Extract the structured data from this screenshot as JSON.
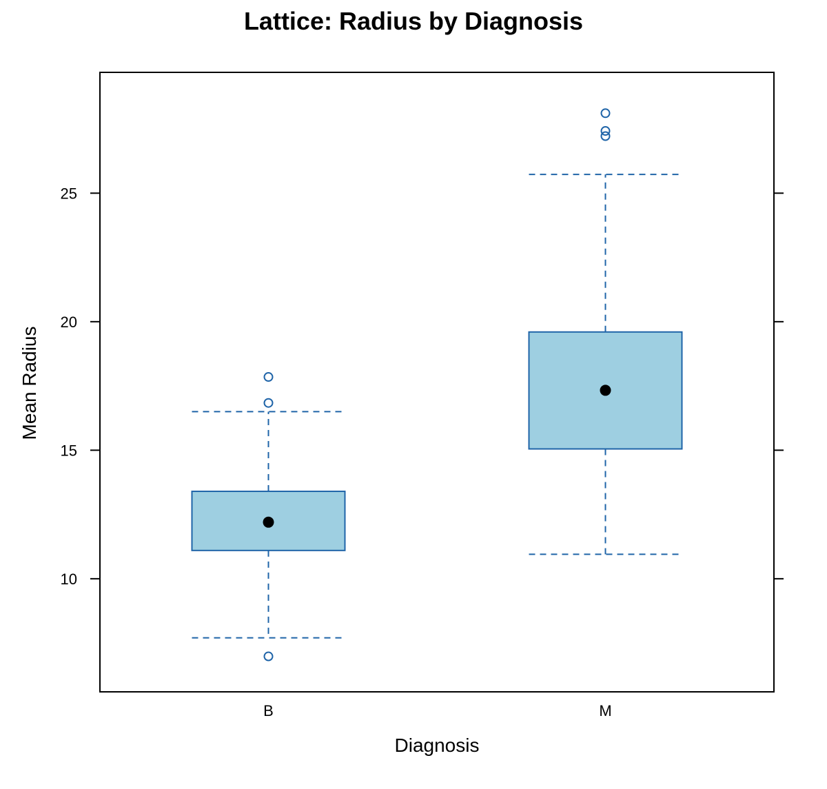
{
  "chart_data": {
    "type": "box",
    "title": "Lattice: Radius by Diagnosis",
    "xlabel": "Diagnosis",
    "ylabel": "Mean Radius",
    "categories": [
      "B",
      "M"
    ],
    "ylim": [
      5.6,
      29.7
    ],
    "yticks": [
      10,
      15,
      20,
      25
    ],
    "grid": false,
    "colors": {
      "box_fill": "#9ECFE1",
      "box_stroke": "#1F64A8",
      "whisker": "#1F64A8",
      "outlier": "#1F64A8",
      "median": "#000000",
      "frame": "#000000"
    },
    "boxes": [
      {
        "category": "B",
        "whisker_low": 7.7,
        "q1": 11.1,
        "median": 12.2,
        "q3": 13.4,
        "whisker_high": 16.5,
        "outliers": [
          6.98,
          16.84,
          17.85
        ]
      },
      {
        "category": "M",
        "whisker_low": 10.95,
        "q1": 15.05,
        "median": 17.33,
        "q3": 19.6,
        "whisker_high": 25.73,
        "outliers": [
          27.22,
          27.42,
          28.11
        ]
      }
    ]
  }
}
